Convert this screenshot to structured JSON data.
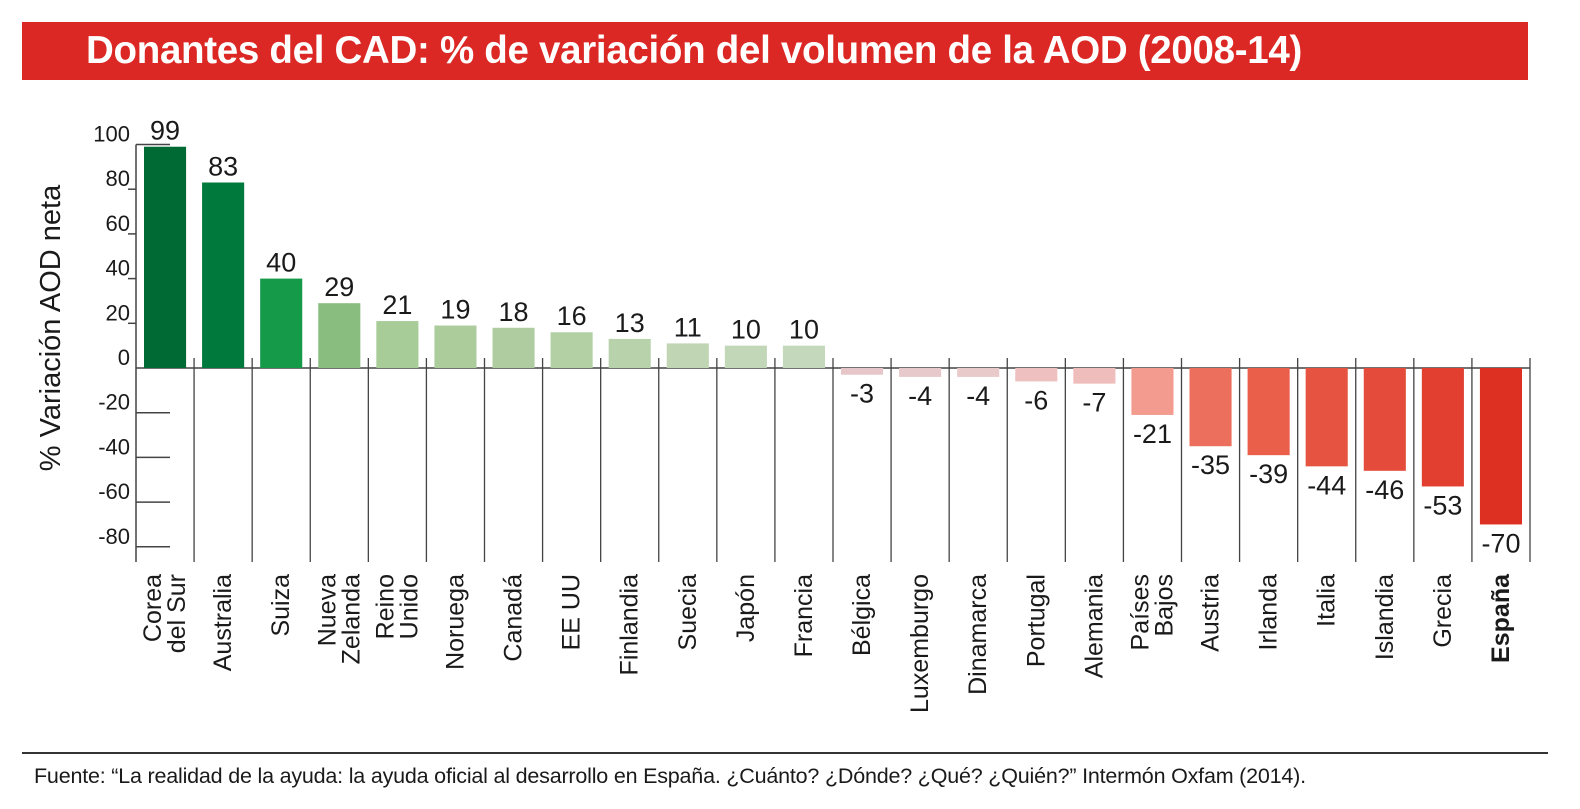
{
  "header": {
    "title": "Donantes del CAD: % de variación del volumen de la AOD (2008-14)"
  },
  "footer": {
    "source": "Fuente: “La realidad de la ayuda: la ayuda oficial al desarrollo en España. ¿Cuánto? ¿Dónde? ¿Qué? ¿Quién?” Intermón Oxfam (2014)."
  },
  "chart_data": {
    "type": "bar",
    "title": "Donantes del CAD: % de variación del volumen de la AOD (2008-14)",
    "xlabel": "",
    "ylabel": "% Variación AOD neta",
    "ylim": [
      -85,
      100
    ],
    "yticks": [
      100,
      80,
      60,
      40,
      20,
      0,
      -20,
      -40,
      -60,
      -80
    ],
    "grid": false,
    "legend": "none",
    "highlight": "España",
    "categories": [
      [
        "Corea",
        "del Sur"
      ],
      [
        "Australia"
      ],
      [
        "Suiza"
      ],
      [
        "Nueva",
        "Zelanda"
      ],
      [
        "Reino",
        "Unido"
      ],
      [
        "Noruega"
      ],
      [
        "Canadá"
      ],
      [
        "EE UU"
      ],
      [
        "Finlandia"
      ],
      [
        "Suecia"
      ],
      [
        "Japón"
      ],
      [
        "Francia"
      ],
      [
        "Bélgica"
      ],
      [
        "Luxemburgo"
      ],
      [
        "Dinamarca"
      ],
      [
        "Portugal"
      ],
      [
        "Alemania"
      ],
      [
        "Países",
        "Bajos"
      ],
      [
        "Austria"
      ],
      [
        "Irlanda"
      ],
      [
        "Italia"
      ],
      [
        "Islandia"
      ],
      [
        "Grecia"
      ],
      [
        "España"
      ]
    ],
    "values": [
      99,
      83,
      40,
      29,
      21,
      19,
      18,
      16,
      13,
      11,
      10,
      10,
      -3,
      -4,
      -4,
      -6,
      -7,
      -21,
      -35,
      -39,
      -44,
      -46,
      -53,
      -70
    ],
    "colors": [
      "#006a35",
      "#007a3c",
      "#149a48",
      "#88bd7f",
      "#a8cc98",
      "#accc9c",
      "#aecc9f",
      "#b3d0a5",
      "#b8d3ab",
      "#bfd5b4",
      "#c2d6b8",
      "#c4d8bb",
      "#e6c6c8",
      "#e8c9cb",
      "#e8caca",
      "#eec0c0",
      "#efbdbc",
      "#f29b8e",
      "#eb6f5c",
      "#e95f4a",
      "#e65341",
      "#e44b3a",
      "#e23f30",
      "#dd2f22"
    ]
  }
}
